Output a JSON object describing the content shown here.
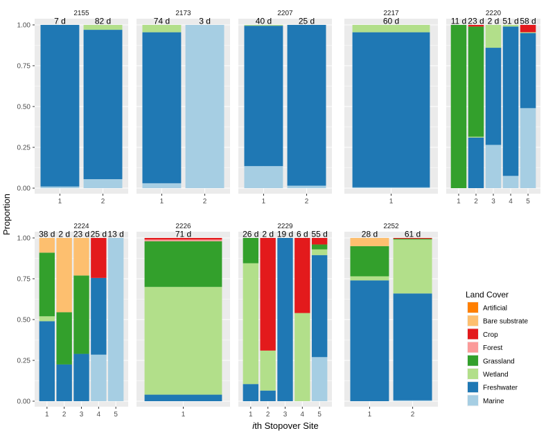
{
  "chart_data": {
    "type": "stacked-bar",
    "ylabel": "Proportion",
    "xlabel_italic": "i",
    "xlabel_rest": "th Stopover Site",
    "ylim": [
      0,
      1
    ],
    "yticks": [
      "0.00",
      "0.25",
      "0.50",
      "0.75",
      "1.00"
    ],
    "legend": {
      "title": "Land Cover",
      "position": "right",
      "entries": [
        {
          "name": "Artificial",
          "color": "#ff7f00"
        },
        {
          "name": "Bare substrate",
          "color": "#fdbf6f"
        },
        {
          "name": "Crop",
          "color": "#e31a1c"
        },
        {
          "name": "Forest",
          "color": "#fb9a99"
        },
        {
          "name": "Grassland",
          "color": "#33a02c"
        },
        {
          "name": "Wetland",
          "color": "#b2df8a"
        },
        {
          "name": "Freshwater",
          "color": "#1f78b4"
        },
        {
          "name": "Marine",
          "color": "#a6cee3"
        }
      ]
    },
    "stack_order_bottom_to_top": [
      "Marine",
      "Freshwater",
      "Wetland",
      "Grassland",
      "Forest",
      "Crop",
      "Bare substrate",
      "Artificial"
    ],
    "panels": [
      {
        "id": "2155",
        "bars": [
          {
            "site": "1",
            "duration": "7 d",
            "values": {
              "Marine": 0.01,
              "Freshwater": 0.99
            }
          },
          {
            "site": "2",
            "duration": "82 d",
            "values": {
              "Marine": 0.055,
              "Freshwater": 0.915,
              "Wetland": 0.03
            }
          }
        ]
      },
      {
        "id": "2173",
        "bars": [
          {
            "site": "1",
            "duration": "74 d",
            "values": {
              "Marine": 0.03,
              "Freshwater": 0.925,
              "Wetland": 0.045
            }
          },
          {
            "site": "2",
            "duration": "3 d",
            "values": {
              "Marine": 1.0
            }
          }
        ]
      },
      {
        "id": "2207",
        "bars": [
          {
            "site": "1",
            "duration": "40 d",
            "values": {
              "Marine": 0.135,
              "Freshwater": 0.86,
              "Wetland": 0.005
            }
          },
          {
            "site": "2",
            "duration": "25 d",
            "values": {
              "Marine": 0.015,
              "Freshwater": 0.985
            }
          }
        ]
      },
      {
        "id": "2217",
        "bars": [
          {
            "site": "1",
            "duration": "60 d",
            "values": {
              "Marine": 0.005,
              "Freshwater": 0.95,
              "Wetland": 0.045
            }
          }
        ]
      },
      {
        "id": "2220",
        "bars": [
          {
            "site": "1",
            "duration": "11 d",
            "values": {
              "Grassland": 1.0
            }
          },
          {
            "site": "2",
            "duration": "23 d",
            "values": {
              "Freshwater": 0.31,
              "Wetland": 0.005,
              "Grassland": 0.675,
              "Crop": 0.01
            }
          },
          {
            "site": "3",
            "duration": "2 d",
            "values": {
              "Marine": 0.265,
              "Freshwater": 0.595,
              "Wetland": 0.14
            }
          },
          {
            "site": "4",
            "duration": "51 d",
            "values": {
              "Marine": 0.075,
              "Freshwater": 0.915,
              "Wetland": 0.01
            }
          },
          {
            "site": "5",
            "duration": "58 d",
            "values": {
              "Marine": 0.49,
              "Freshwater": 0.46,
              "Wetland": 0.005,
              "Crop": 0.045
            }
          }
        ]
      },
      {
        "id": "2224",
        "bars": [
          {
            "site": "1",
            "duration": "38 d",
            "values": {
              "Freshwater": 0.49,
              "Wetland": 0.03,
              "Grassland": 0.39,
              "Bare substrate": 0.09
            }
          },
          {
            "site": "2",
            "duration": "2 d",
            "values": {
              "Freshwater": 0.225,
              "Grassland": 0.32,
              "Bare substrate": 0.455
            }
          },
          {
            "site": "3",
            "duration": "23 d",
            "values": {
              "Freshwater": 0.29,
              "Grassland": 0.48,
              "Bare substrate": 0.23
            }
          },
          {
            "site": "4",
            "duration": "25 d",
            "values": {
              "Marine": 0.285,
              "Freshwater": 0.47,
              "Crop": 0.245
            }
          },
          {
            "site": "5",
            "duration": "13 d",
            "values": {
              "Marine": 1.0
            }
          }
        ]
      },
      {
        "id": "2226",
        "bars": [
          {
            "site": "1",
            "duration": "71 d",
            "values": {
              "Freshwater": 0.04,
              "Wetland": 0.66,
              "Grassland": 0.28,
              "Forest": 0.01,
              "Crop": 0.01
            }
          }
        ]
      },
      {
        "id": "2229",
        "bars": [
          {
            "site": "1",
            "duration": "26 d",
            "values": {
              "Freshwater": 0.105,
              "Wetland": 0.74,
              "Grassland": 0.155
            }
          },
          {
            "site": "2",
            "duration": "2 d",
            "values": {
              "Freshwater": 0.065,
              "Wetland": 0.245,
              "Crop": 0.69
            }
          },
          {
            "site": "3",
            "duration": "19 d",
            "values": {
              "Freshwater": 1.0
            }
          },
          {
            "site": "4",
            "duration": "6 d",
            "values": {
              "Wetland": 0.54,
              "Crop": 0.46
            }
          },
          {
            "site": "5",
            "duration": "55 d",
            "values": {
              "Marine": 0.27,
              "Freshwater": 0.625,
              "Wetland": 0.035,
              "Grassland": 0.03,
              "Crop": 0.04
            }
          }
        ]
      },
      {
        "id": "2252",
        "bars": [
          {
            "site": "1",
            "duration": "28 d",
            "values": {
              "Freshwater": 0.74,
              "Wetland": 0.025,
              "Grassland": 0.185,
              "Bare substrate": 0.05
            }
          },
          {
            "site": "2",
            "duration": "61 d",
            "values": {
              "Marine": 0.005,
              "Freshwater": 0.655,
              "Wetland": 0.33,
              "Grassland": 0.005,
              "Crop": 0.005
            }
          }
        ]
      }
    ]
  }
}
